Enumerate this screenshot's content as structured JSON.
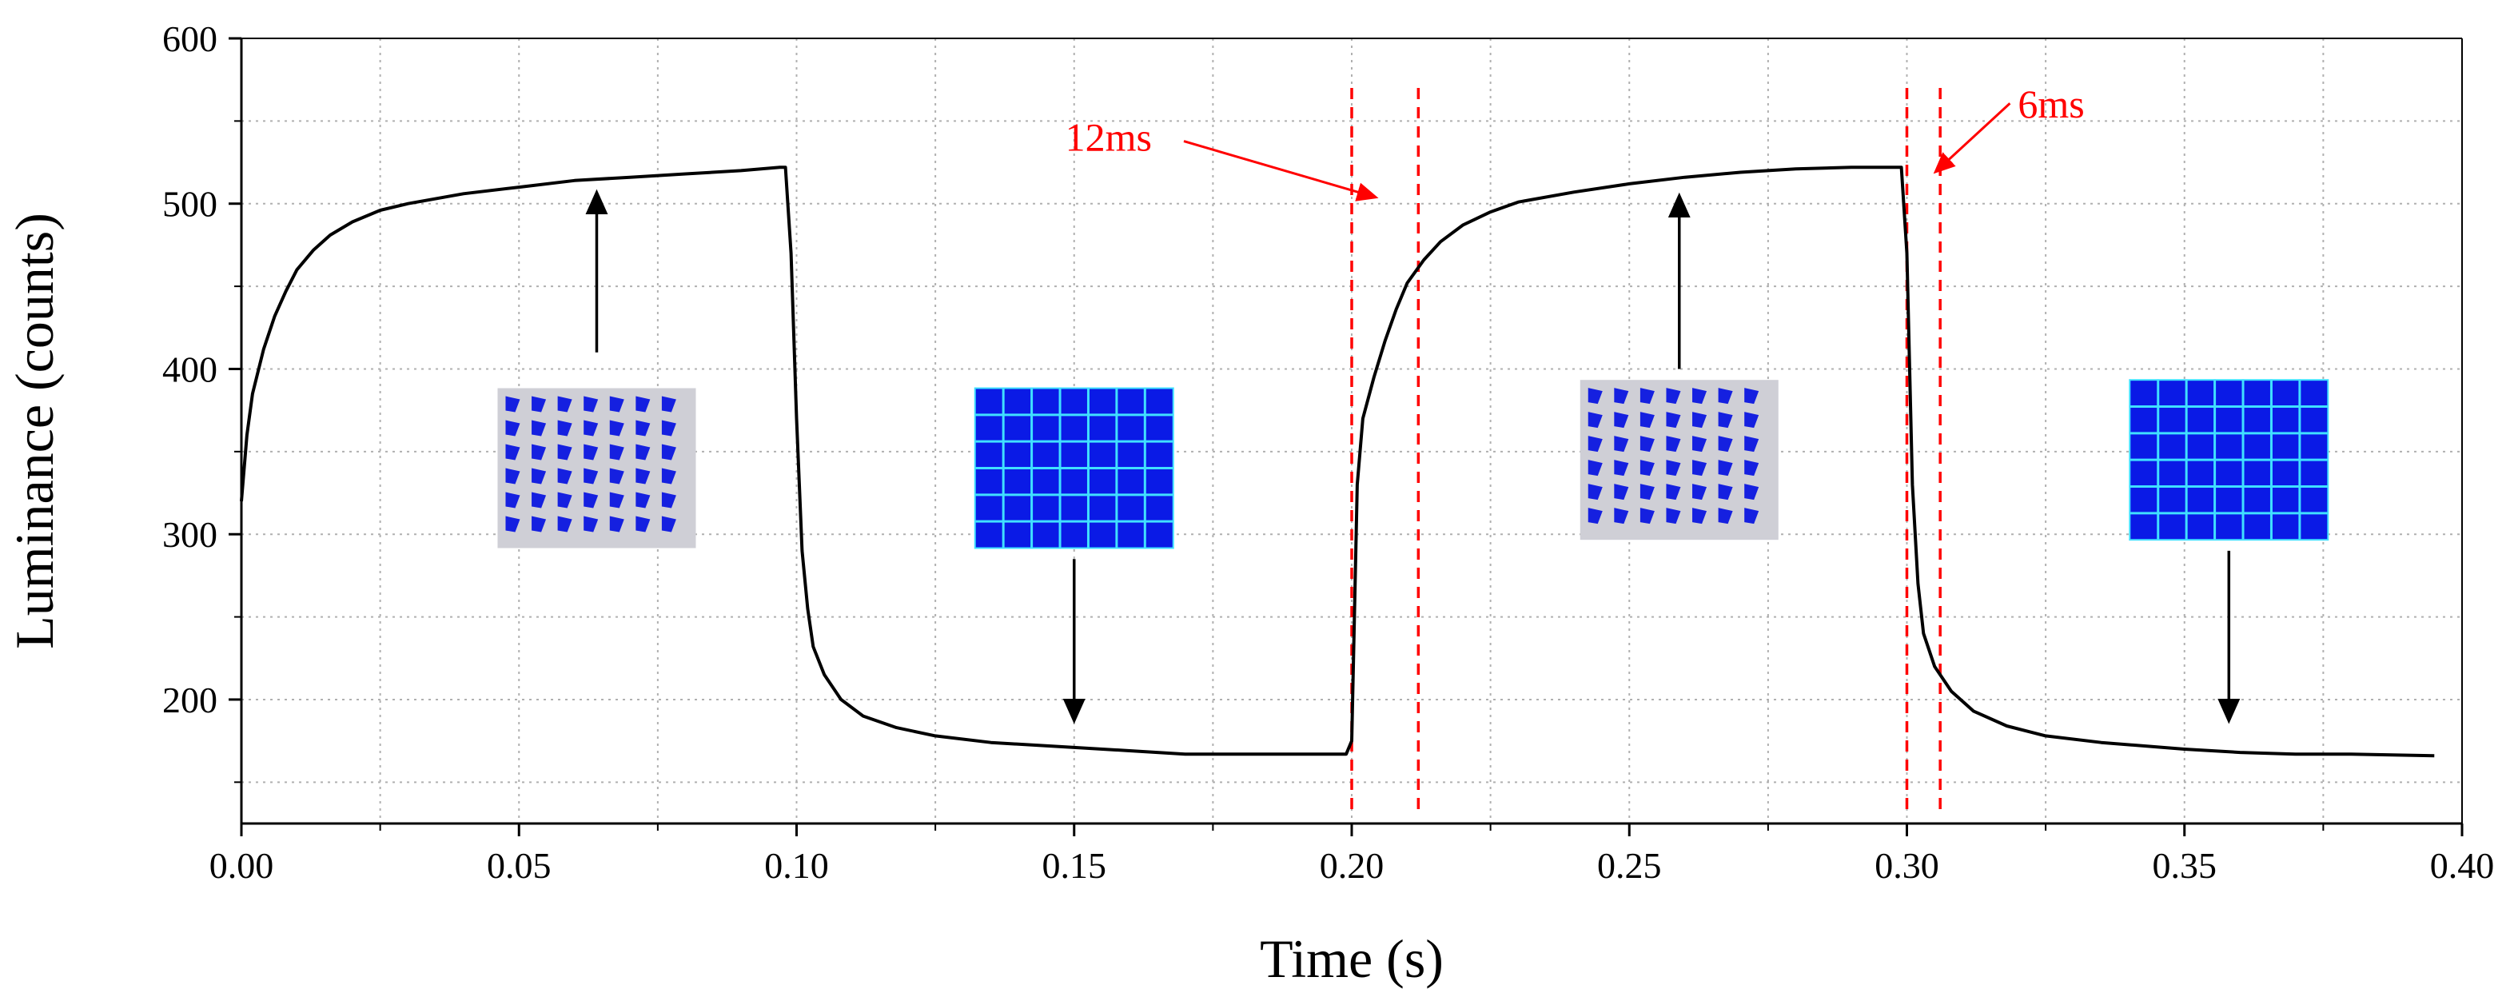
{
  "chart_data": {
    "type": "line",
    "title": "",
    "xlabel": "Time (s)",
    "ylabel": "Luminance (counts)",
    "xlim": [
      0.0,
      0.4
    ],
    "ylim": [
      125,
      600
    ],
    "x_ticks": [
      0.0,
      0.05,
      0.1,
      0.15,
      0.2,
      0.25,
      0.3,
      0.35,
      0.4
    ],
    "x_tick_labels": [
      "0.00",
      "0.05",
      "0.10",
      "0.15",
      "0.20",
      "0.25",
      "0.30",
      "0.35",
      "0.40"
    ],
    "y_ticks": [
      200,
      300,
      400,
      500,
      600
    ],
    "y_tick_labels": [
      "200",
      "300",
      "400",
      "500",
      "600"
    ],
    "grid": true,
    "series": [
      {
        "name": "Luminance",
        "color": "#000000",
        "x": [
          0.0,
          0.001,
          0.002,
          0.004,
          0.006,
          0.008,
          0.01,
          0.013,
          0.016,
          0.02,
          0.025,
          0.03,
          0.04,
          0.05,
          0.06,
          0.07,
          0.08,
          0.09,
          0.097,
          0.098,
          0.099,
          0.1,
          0.101,
          0.102,
          0.103,
          0.105,
          0.108,
          0.112,
          0.118,
          0.125,
          0.135,
          0.15,
          0.16,
          0.17,
          0.18,
          0.19,
          0.199,
          0.2,
          0.201,
          0.202,
          0.204,
          0.206,
          0.208,
          0.21,
          0.213,
          0.216,
          0.22,
          0.225,
          0.23,
          0.24,
          0.25,
          0.26,
          0.27,
          0.28,
          0.29,
          0.299,
          0.3,
          0.301,
          0.302,
          0.303,
          0.305,
          0.308,
          0.312,
          0.318,
          0.325,
          0.335,
          0.35,
          0.36,
          0.37,
          0.38,
          0.395
        ],
        "y": [
          320,
          360,
          385,
          412,
          432,
          447,
          460,
          472,
          481,
          489,
          496,
          500,
          506,
          510,
          514,
          516,
          518,
          520,
          522,
          522,
          470,
          370,
          290,
          255,
          232,
          215,
          200,
          190,
          183,
          178,
          174,
          171,
          169,
          167,
          167,
          167,
          167,
          175,
          330,
          370,
          395,
          417,
          436,
          452,
          466,
          477,
          487,
          495,
          501,
          507,
          512,
          516,
          519,
          521,
          522,
          522,
          470,
          330,
          270,
          240,
          220,
          205,
          193,
          184,
          178,
          174,
          170,
          168,
          167,
          167,
          166
        ]
      }
    ],
    "annotations": [
      {
        "text": "12ms",
        "color": "#ff0000",
        "x_start": 0.2,
        "x_end": 0.212,
        "label_x": 0.164,
        "label_y": 532
      },
      {
        "text": "6ms",
        "color": "#ff0000",
        "x_start": 0.3,
        "x_end": 0.306,
        "label_x": 0.32,
        "label_y": 552
      }
    ],
    "dashed_lines": [
      {
        "x": 0.2,
        "y_range": [
          130,
          570
        ],
        "color": "#ff0000"
      },
      {
        "x": 0.212,
        "y_range": [
          130,
          570
        ],
        "color": "#ff0000"
      },
      {
        "x": 0.3,
        "y_range": [
          130,
          570
        ],
        "color": "#ff0000"
      },
      {
        "x": 0.306,
        "y_range": [
          130,
          570
        ],
        "color": "#ff0000"
      }
    ],
    "insets": [
      {
        "state": "bright-pixel-pattern",
        "x_center": 0.064,
        "y_center": 340,
        "arrow": "up",
        "arrow_from": 410,
        "arrow_to": 502
      },
      {
        "state": "dark-grid-pattern",
        "x_center": 0.15,
        "y_center": 340,
        "arrow": "down",
        "arrow_from": 285,
        "arrow_to": 192
      },
      {
        "state": "bright-pixel-pattern",
        "x_center": 0.259,
        "y_center": 345,
        "arrow": "up",
        "arrow_from": 400,
        "arrow_to": 500
      },
      {
        "state": "dark-grid-pattern",
        "x_center": 0.358,
        "y_center": 345,
        "arrow": "down",
        "arrow_from": 290,
        "arrow_to": 192
      }
    ]
  }
}
